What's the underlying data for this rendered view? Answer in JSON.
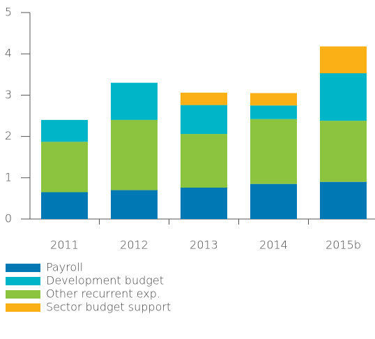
{
  "chart_data": {
    "type": "stacked_bar",
    "categories": [
      "2011",
      "2012",
      "2013",
      "2014",
      "2015b"
    ],
    "series": [
      {
        "name": "Payroll",
        "color": "#0078b4",
        "values": [
          0.65,
          0.7,
          0.76,
          0.85,
          0.9
        ]
      },
      {
        "name": "Development budget",
        "color": "#00b5c8",
        "values": [
          0.53,
          0.9,
          0.7,
          0.33,
          1.15
        ]
      },
      {
        "name": "Other recurrent exp.",
        "color": "#8cc43f",
        "values": [
          1.22,
          1.7,
          1.3,
          1.57,
          1.48
        ]
      },
      {
        "name": "Sector budget support",
        "color": "#fbb116",
        "values": [
          0,
          0,
          0.3,
          0.3,
          0.65
        ]
      }
    ],
    "stack_order": [
      0,
      2,
      1,
      3
    ],
    "ylim": [
      0,
      5
    ],
    "yticks": [
      0,
      1,
      2,
      3,
      4,
      5
    ],
    "grid": false
  }
}
